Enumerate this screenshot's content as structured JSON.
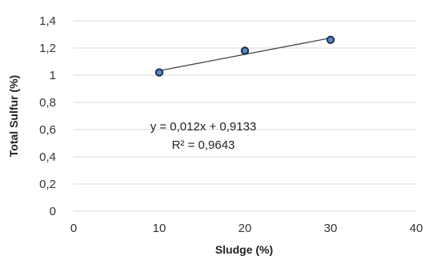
{
  "chart_data": {
    "type": "scatter",
    "title": "",
    "xlabel": "Sludge (%)",
    "ylabel": "Total Sulfur (%)",
    "xlim": [
      0,
      40
    ],
    "ylim": [
      0,
      1.4
    ],
    "x_ticks": [
      "0",
      "10",
      "20",
      "30",
      "40"
    ],
    "y_ticks": [
      "0",
      "0,2",
      "0,4",
      "0,6",
      "0,8",
      "1",
      "1,2",
      "1,4"
    ],
    "grid": true,
    "series": [
      {
        "x": [
          10,
          20,
          30
        ],
        "y": [
          1.02,
          1.18,
          1.26
        ]
      }
    ],
    "trendline": {
      "type": "linear",
      "slope": 0.012,
      "intercept": 0.9133,
      "x_range": [
        10,
        30
      ]
    },
    "annotations": [
      "y = 0,012x + 0,9133",
      "R² = 0,9643"
    ],
    "colors": {
      "marker_fill": "#5b87c5",
      "marker_stroke": "#1f2f4f",
      "trendline": "#444444",
      "grid": "#d9d9d9"
    }
  }
}
